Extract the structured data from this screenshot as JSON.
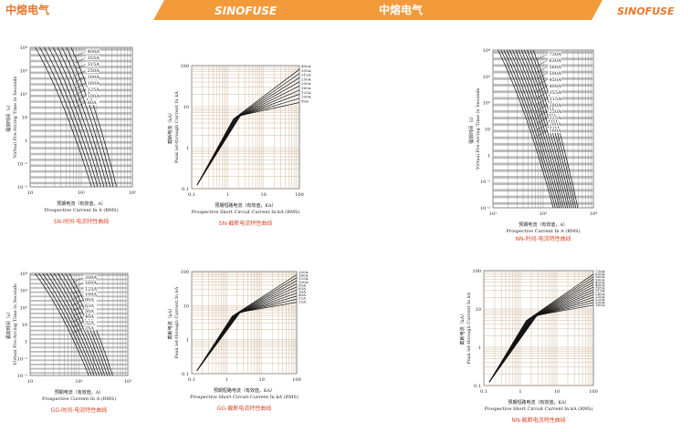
{
  "header": {
    "brand_left": "中熔电气",
    "logo_left": "SINOFUSE",
    "brand_right": "中熔电气",
    "logo_right": "SINOFUSE"
  },
  "panels": [
    {
      "caption": "SN-时间-电流特性曲线",
      "x_label_cn": "预期电流（有效值，A）",
      "x_label_en": "Prospective Current In A (RMS)",
      "y_label_cn": "弧前时间（s）",
      "y_label_en": "Virtual Pre-Arcing Time in Seconds",
      "x_ticks": [
        "10",
        "10²",
        "10³"
      ],
      "y_ticks": [
        "10⁻²",
        "10⁻¹",
        "1",
        "10",
        "10²",
        "10³",
        "10⁴"
      ],
      "ratings": [
        "400A",
        "355A",
        "315A",
        "250A",
        "200A",
        "160A",
        "125A",
        "100A",
        "80A"
      ]
    },
    {
      "caption": "SN-截断电流特性曲线",
      "x_label_cn": "预期短路电流（有效值，KA）",
      "x_label_en": "Prospective Short Circuit Current In kA (RMS)",
      "y_label_cn": "截断电流（kA）",
      "y_label_en": "Peak let-through Current In kA",
      "x_ticks": [
        "0.1",
        "1",
        "10",
        "100"
      ],
      "y_ticks": [
        "0.1",
        "1",
        "10",
        "100"
      ],
      "ratings": [
        "400A",
        "355A",
        "315A",
        "250A",
        "200A",
        "160A",
        "125A",
        "100A",
        "80A"
      ]
    },
    {
      "caption": "NN-时间-电流特性曲线",
      "x_label_cn": "预期电流（有效值，A）",
      "x_label_en": "Prospective Current In A (RMS)",
      "y_label_cn": "弧前时间（s）",
      "y_label_en": "Virtual Pre-Arcing Time in Seconds",
      "x_ticks": [
        "10²",
        "10³",
        "10⁴"
      ],
      "y_ticks": [
        "10⁻²",
        "10⁻¹",
        "1",
        "10",
        "10²",
        "10³",
        "10⁴"
      ],
      "ratings": [
        "730A",
        "630A",
        "560A",
        "500A",
        "450A",
        "400A",
        "355A",
        "315A",
        "280A",
        "250A",
        "225A",
        "200A",
        "160A"
      ]
    },
    {
      "caption": "GG-时间-电流特性曲线",
      "x_label_cn": "预期电流（有效值，A）",
      "x_label_en": "Prospective Current In A (RMS)",
      "y_label_cn": "弧前时间（s）",
      "y_label_en": "Virtual Pre-Arcing Time in Seconds",
      "x_ticks": [
        "10",
        "10²",
        "10³"
      ],
      "y_ticks": [
        "10⁻²",
        "10⁻¹",
        "1",
        "10",
        "10²",
        "10³",
        "10⁴"
      ],
      "ratings": [
        "200A",
        "160A",
        "125A",
        "100A",
        "80A",
        "63A",
        "50A",
        "40A",
        "32A",
        "25A"
      ]
    },
    {
      "caption": "GG-截断电流特性曲线",
      "x_label_cn": "预期短路电流（有效值，KA）",
      "x_label_en": "Prospective Short Circuit Current In kA (RMS)",
      "y_label_cn": "截断电流（kA）",
      "y_label_en": "Peak let-through Current In kA",
      "x_ticks": [
        "0.1",
        "1",
        "10",
        "100"
      ],
      "y_ticks": [
        "0.1",
        "1",
        "10",
        "100"
      ],
      "ratings": [
        "200A",
        "160A",
        "125A",
        "100A",
        "80A",
        "63A",
        "50A",
        "40A",
        "32A",
        "25A"
      ]
    },
    {
      "caption": "NN-截断电流特性曲线",
      "x_label_cn": "预期短路电流（有效值，KA）",
      "x_label_en": "Prospective Short Circuit Current In kA (RMS)",
      "y_label_cn": "截断电流（kA）",
      "y_label_en": "Peak let-through Current In kA",
      "x_ticks": [
        "0.1",
        "1",
        "10",
        "100"
      ],
      "y_ticks": [
        "0.1",
        "1",
        "10",
        "100"
      ],
      "ratings": [
        "730A",
        "630A",
        "560A",
        "500A",
        "450A",
        "400A",
        "355A",
        "315A",
        "280A",
        "250A",
        "225A",
        "200A",
        "160A"
      ]
    }
  ]
}
